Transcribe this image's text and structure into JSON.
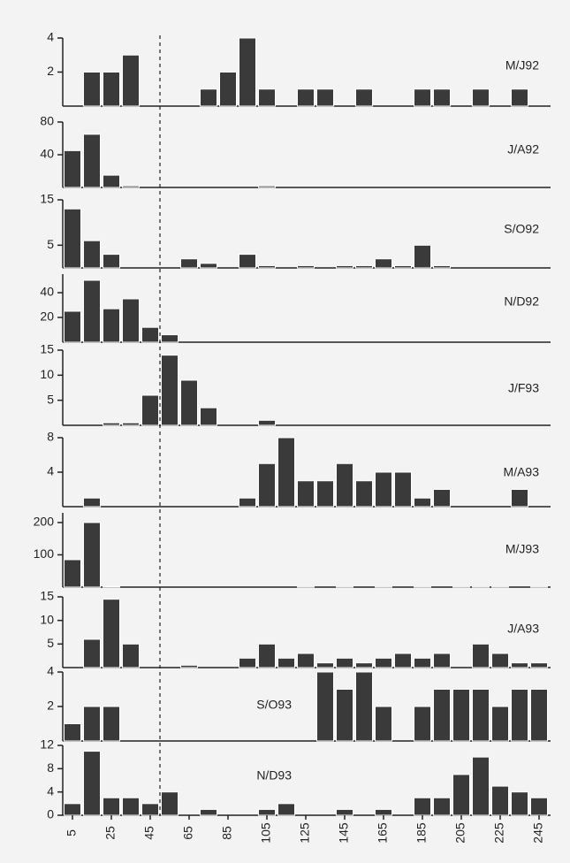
{
  "color": "#3a3a3a",
  "reference_line_x": 50,
  "chart_data": [
    {
      "type": "histogram",
      "label": "M/J92",
      "xlim": [
        0,
        250
      ],
      "ylim": [
        0,
        4
      ],
      "yticks": [
        2,
        4
      ],
      "bins": [
        0,
        10,
        20,
        30,
        40,
        50,
        60,
        70,
        80,
        90,
        100,
        110,
        120,
        130,
        140,
        150,
        160,
        170,
        180,
        190,
        200,
        210,
        220,
        230,
        240,
        250
      ],
      "values": [
        0,
        2,
        2,
        3,
        0,
        0,
        0,
        1,
        2,
        4,
        1,
        0,
        1,
        1,
        0,
        1,
        0,
        0,
        1,
        1,
        0,
        1,
        0,
        1,
        0
      ]
    },
    {
      "type": "histogram",
      "label": "J/A92",
      "xlim": [
        0,
        250
      ],
      "ylim": [
        0,
        80
      ],
      "yticks": [
        40,
        80
      ],
      "bins": [
        0,
        10,
        20,
        30,
        40,
        50,
        60,
        70,
        80,
        90,
        100,
        110,
        120,
        130,
        140,
        150,
        160,
        170,
        180,
        190,
        200,
        210,
        220,
        230,
        240,
        250
      ],
      "values": [
        45,
        65,
        15,
        2,
        0,
        0,
        0,
        0,
        0,
        0,
        2,
        0,
        0,
        0,
        0,
        0,
        0,
        0,
        0,
        0,
        0,
        0,
        0,
        0,
        0
      ]
    },
    {
      "type": "histogram",
      "label": "S/O92",
      "xlim": [
        0,
        250
      ],
      "ylim": [
        0,
        15
      ],
      "yticks": [
        5,
        15
      ],
      "bins": [
        0,
        10,
        20,
        30,
        40,
        50,
        60,
        70,
        80,
        90,
        100,
        110,
        120,
        130,
        140,
        150,
        160,
        170,
        180,
        190,
        200,
        210,
        220,
        230,
        240,
        250
      ],
      "values": [
        13,
        6,
        3,
        0,
        0,
        0,
        2,
        1,
        0,
        3,
        0.5,
        0,
        0.5,
        0,
        0.5,
        0.5,
        2,
        0.5,
        5,
        0.5,
        0,
        0,
        0,
        0,
        0
      ]
    },
    {
      "type": "histogram",
      "label": "N/D92",
      "xlim": [
        0,
        250
      ],
      "ylim": [
        0,
        55
      ],
      "yticks": [
        20,
        40
      ],
      "bins": [
        0,
        10,
        20,
        30,
        40,
        50,
        60,
        70,
        80,
        90,
        100,
        110,
        120,
        130,
        140,
        150,
        160,
        170,
        180,
        190,
        200,
        210,
        220,
        230,
        240,
        250
      ],
      "values": [
        25,
        50,
        27,
        35,
        12,
        6,
        0,
        0,
        0,
        0,
        0,
        0,
        0,
        0,
        0,
        0,
        0,
        0,
        0,
        0,
        0,
        0,
        0,
        0,
        0
      ]
    },
    {
      "type": "histogram",
      "label": "J/F93",
      "xlim": [
        0,
        250
      ],
      "ylim": [
        0,
        15
      ],
      "yticks": [
        5,
        10,
        15
      ],
      "bins": [
        0,
        10,
        20,
        30,
        40,
        50,
        60,
        70,
        80,
        90,
        100,
        110,
        120,
        130,
        140,
        150,
        160,
        170,
        180,
        190,
        200,
        210,
        220,
        230,
        240,
        250
      ],
      "values": [
        0,
        0,
        0.5,
        0.5,
        6,
        14,
        9,
        3.5,
        0,
        0,
        1,
        0,
        0,
        0,
        0,
        0,
        0,
        0,
        0,
        0,
        0,
        0,
        0,
        0,
        0
      ]
    },
    {
      "type": "histogram",
      "label": "M/A93",
      "xlim": [
        0,
        250
      ],
      "ylim": [
        0,
        8
      ],
      "yticks": [
        4,
        8
      ],
      "bins": [
        0,
        10,
        20,
        30,
        40,
        50,
        60,
        70,
        80,
        90,
        100,
        110,
        120,
        130,
        140,
        150,
        160,
        170,
        180,
        190,
        200,
        210,
        220,
        230,
        240,
        250
      ],
      "values": [
        0,
        1,
        0,
        0,
        0,
        0,
        0,
        0,
        0,
        1,
        5,
        8,
        3,
        3,
        5,
        3,
        4,
        4,
        1,
        2,
        0,
        0,
        0,
        2,
        0
      ]
    },
    {
      "type": "histogram",
      "label": "M/J93",
      "xlim": [
        0,
        250
      ],
      "ylim": [
        0,
        230
      ],
      "yticks": [
        100,
        200
      ],
      "bins": [
        0,
        10,
        20,
        30,
        40,
        50,
        60,
        70,
        80,
        90,
        100,
        110,
        120,
        130,
        140,
        150,
        160,
        170,
        180,
        190,
        200,
        210,
        220,
        230,
        240,
        250
      ],
      "values": [
        85,
        200,
        2,
        0,
        0,
        0,
        0,
        0,
        0,
        0,
        0,
        0,
        1,
        0,
        1,
        0,
        1,
        0,
        1,
        0,
        1,
        1,
        1,
        0,
        1
      ]
    },
    {
      "type": "histogram",
      "label": "J/A93",
      "xlim": [
        0,
        250
      ],
      "ylim": [
        0,
        15
      ],
      "yticks": [
        5,
        10,
        15
      ],
      "bins": [
        0,
        10,
        20,
        30,
        40,
        50,
        60,
        70,
        80,
        90,
        100,
        110,
        120,
        130,
        140,
        150,
        160,
        170,
        180,
        190,
        200,
        210,
        220,
        230,
        240,
        250
      ],
      "values": [
        0,
        6,
        14.5,
        5,
        0,
        0,
        0.5,
        0,
        0,
        2,
        5,
        2,
        3,
        1,
        2,
        1,
        2,
        3,
        2,
        3,
        0,
        5,
        3,
        1,
        1
      ]
    },
    {
      "type": "histogram",
      "label": "S/O93",
      "xlim": [
        0,
        250
      ],
      "ylim": [
        0,
        4
      ],
      "yticks": [
        2,
        4
      ],
      "bins": [
        0,
        10,
        20,
        30,
        40,
        50,
        60,
        70,
        80,
        90,
        100,
        110,
        120,
        130,
        140,
        150,
        160,
        170,
        180,
        190,
        200,
        210,
        220,
        230,
        240,
        250
      ],
      "values": [
        1,
        2,
        2,
        0,
        0,
        0,
        0,
        0,
        0,
        0,
        0,
        0,
        0,
        4,
        3,
        4,
        2,
        0,
        2,
        3,
        3,
        3,
        2,
        3,
        3
      ]
    },
    {
      "type": "histogram",
      "label": "N/D93",
      "xlim": [
        0,
        250
      ],
      "ylim": [
        0,
        12
      ],
      "yticks": [
        0,
        4,
        8,
        12
      ],
      "bins": [
        0,
        10,
        20,
        30,
        40,
        50,
        60,
        70,
        80,
        90,
        100,
        110,
        120,
        130,
        140,
        150,
        160,
        170,
        180,
        190,
        200,
        210,
        220,
        230,
        240,
        250
      ],
      "values": [
        2,
        11,
        3,
        3,
        2,
        4,
        0,
        1,
        0,
        0,
        1,
        2,
        0,
        0,
        1,
        0,
        1,
        0,
        3,
        3,
        7,
        10,
        5,
        4,
        3
      ],
      "xticks": [
        5,
        25,
        45,
        65,
        85,
        105,
        125,
        145,
        165,
        185,
        205,
        225,
        245
      ]
    }
  ]
}
